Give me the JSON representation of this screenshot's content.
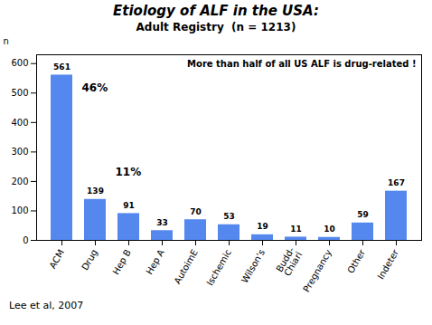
{
  "chart_data": {
    "type": "bar",
    "title": "Etiology of ALF in the USA:",
    "subtitle": "Adult Registry  (n = 1213)",
    "categories": [
      "ACM",
      "Drug",
      "Hep B",
      "Hep A",
      "AutoimE",
      "Ischemic",
      "Wilson's",
      "Budd-\nChiari",
      "Pregnancy",
      "Other",
      "Indeter"
    ],
    "values": [
      561,
      139,
      91,
      33,
      70,
      53,
      19,
      11,
      10,
      59,
      167
    ],
    "color": "#5588ee",
    "ylabel": "n",
    "ylim": [
      0,
      630
    ],
    "yticks": [
      0,
      100,
      200,
      300,
      400,
      500,
      600
    ],
    "grid": false,
    "data_labels": true,
    "annotations": [
      "46%",
      "11%",
      "More than half of all US ALF is drug-related !"
    ],
    "caption": "Lee et al, 2007"
  }
}
